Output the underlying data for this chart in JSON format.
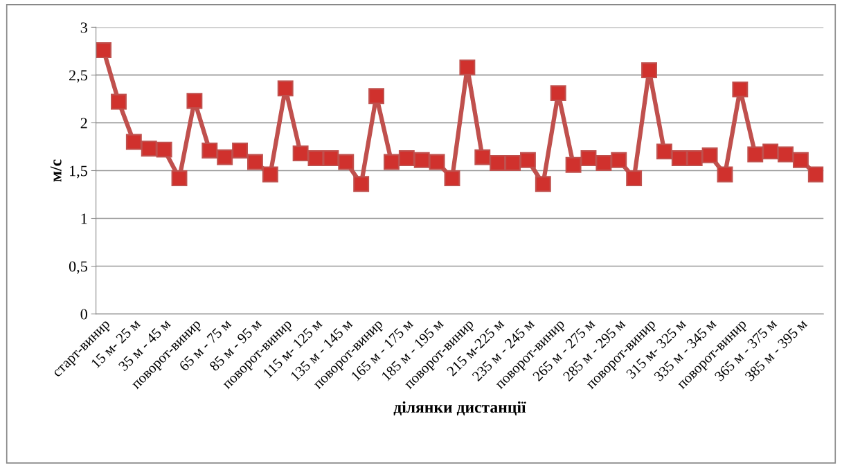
{
  "chart_data": {
    "type": "line",
    "xlabel": "ділянки дистанції",
    "ylabel": "м/с",
    "categories": [
      "старт-винир",
      null,
      "15 м- 25 м",
      null,
      "35 м - 45 м",
      null,
      "поворот-винир",
      null,
      "65 м - 75 м",
      null,
      "85 м - 95 м",
      null,
      "поворот-винир",
      null,
      "115 м- 125 м",
      null,
      "135 м - 145 м",
      null,
      "поворот-винир",
      null,
      "165 м - 175 м",
      null,
      "185 м - 195 м",
      null,
      "поворот-винир",
      null,
      "215 м-225 м",
      null,
      "235 м - 245 м",
      null,
      "поворот-винир",
      null,
      "265 м - 275 м",
      null,
      "285 м - 295 м",
      null,
      "поворот-винир",
      null,
      "315 м- 325 м",
      null,
      "335 м - 345 м",
      null,
      "поворот-винир",
      null,
      "365 м - 375 м",
      null,
      "385 м - 395 м",
      null
    ],
    "series": [
      {
        "color": "#c0504d",
        "values": [
          2.76,
          2.22,
          1.8,
          1.73,
          1.72,
          1.42,
          2.23,
          1.71,
          1.64,
          1.71,
          1.59,
          1.46,
          2.36,
          1.68,
          1.63,
          1.63,
          1.59,
          1.36,
          2.28,
          1.59,
          1.63,
          1.61,
          1.59,
          1.42,
          2.58,
          1.64,
          1.58,
          1.58,
          1.61,
          1.36,
          2.31,
          1.56,
          1.63,
          1.58,
          1.61,
          1.42,
          2.55,
          1.7,
          1.63,
          1.63,
          1.66,
          1.46,
          2.35,
          1.67,
          1.7,
          1.67,
          1.61,
          1.46
        ]
      }
    ],
    "ylim": [
      0,
      3
    ],
    "yticks": [
      0,
      {
        "value": 0.5,
        "label": "0,5"
      },
      1,
      {
        "value": 1.5,
        "label": "1,5"
      },
      2,
      {
        "value": 2.5,
        "label": "2,5"
      },
      3
    ],
    "grid": "y",
    "marker": "square",
    "line_style": "solid"
  }
}
